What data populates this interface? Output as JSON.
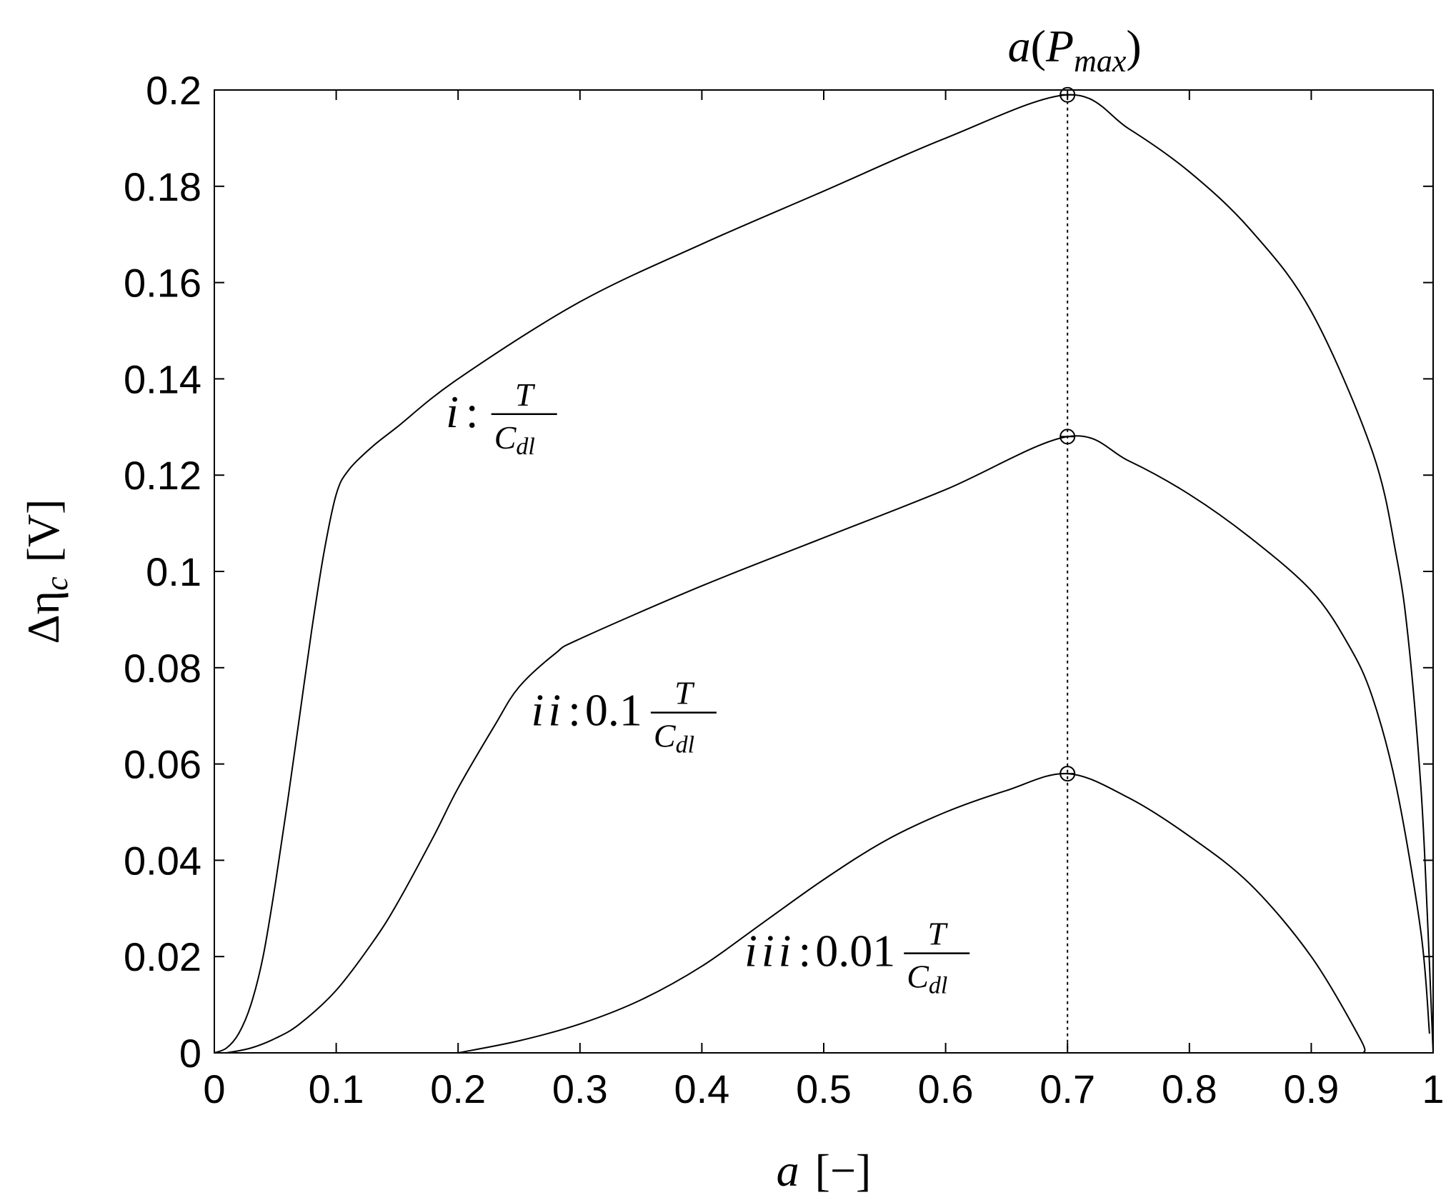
{
  "chart_data": {
    "type": "line",
    "xlabel": {
      "symbol": "a",
      "unit": "[−]"
    },
    "ylabel": {
      "symbol": "Δη",
      "subscript": "c",
      "unit": "[V]"
    },
    "xlim": [
      0,
      1
    ],
    "ylim": [
      0,
      0.2
    ],
    "xticks": [
      0,
      0.1,
      0.2,
      0.3,
      0.4,
      0.5,
      0.6,
      0.7,
      0.8,
      0.9,
      1
    ],
    "xtick_labels": [
      "0",
      "0.1",
      "0.2",
      "0.3",
      "0.4",
      "0.5",
      "0.6",
      "0.7",
      "0.8",
      "0.9",
      "1"
    ],
    "yticks": [
      0,
      0.02,
      0.04,
      0.06,
      0.08,
      0.1,
      0.12,
      0.14,
      0.16,
      0.18,
      0.2
    ],
    "ytick_labels": [
      "0",
      "0.02",
      "0.04",
      "0.06",
      "0.08",
      "0.1",
      "0.12",
      "0.14",
      "0.16",
      "0.18",
      "0.2"
    ],
    "grid": false,
    "legend": "none",
    "pmax_label": {
      "symbol": "a",
      "open": "(",
      "P": "P",
      "subscript": "max",
      "close": ")"
    },
    "pmax_x": 0.7,
    "series": [
      {
        "label_prefix": "i",
        "label_coef": "",
        "frac_num": "T",
        "frac_den_main": "C",
        "frac_den_sub": "dl",
        "label_pos": [
          0.19,
          0.13
        ],
        "points": [
          [
            0,
            0
          ],
          [
            0.01,
            0.001
          ],
          [
            0.02,
            0.004
          ],
          [
            0.03,
            0.01
          ],
          [
            0.04,
            0.02
          ],
          [
            0.05,
            0.035
          ],
          [
            0.06,
            0.052
          ],
          [
            0.07,
            0.07
          ],
          [
            0.08,
            0.088
          ],
          [
            0.09,
            0.104
          ],
          [
            0.1,
            0.116
          ],
          [
            0.11,
            0.121
          ],
          [
            0.13,
            0.126
          ],
          [
            0.15,
            0.13
          ],
          [
            0.2,
            0.14
          ],
          [
            0.3,
            0.156
          ],
          [
            0.4,
            0.168
          ],
          [
            0.5,
            0.179
          ],
          [
            0.6,
            0.19
          ],
          [
            0.7,
            0.199
          ],
          [
            0.75,
            0.192
          ],
          [
            0.8,
            0.183
          ],
          [
            0.85,
            0.171
          ],
          [
            0.9,
            0.154
          ],
          [
            0.95,
            0.125
          ],
          [
            0.97,
            0.103
          ],
          [
            0.98,
            0.085
          ],
          [
            0.99,
            0.055
          ],
          [
            0.995,
            0.03
          ],
          [
            1.0,
            0.0
          ]
        ],
        "peak": [
          0.7,
          0.199
        ]
      },
      {
        "label_prefix": "ii",
        "label_coef": "0.1",
        "frac_num": "T",
        "frac_den_main": "C",
        "frac_den_sub": "dl",
        "label_pos": [
          0.26,
          0.068
        ],
        "points": [
          [
            0.01,
            0
          ],
          [
            0.03,
            0.001
          ],
          [
            0.05,
            0.003
          ],
          [
            0.07,
            0.006
          ],
          [
            0.1,
            0.013
          ],
          [
            0.13,
            0.023
          ],
          [
            0.15,
            0.031
          ],
          [
            0.18,
            0.045
          ],
          [
            0.2,
            0.055
          ],
          [
            0.23,
            0.068
          ],
          [
            0.25,
            0.076
          ],
          [
            0.28,
            0.083
          ],
          [
            0.3,
            0.086
          ],
          [
            0.4,
            0.097
          ],
          [
            0.5,
            0.107
          ],
          [
            0.6,
            0.117
          ],
          [
            0.7,
            0.128
          ],
          [
            0.75,
            0.123
          ],
          [
            0.8,
            0.116
          ],
          [
            0.85,
            0.107
          ],
          [
            0.9,
            0.096
          ],
          [
            0.93,
            0.085
          ],
          [
            0.95,
            0.074
          ],
          [
            0.97,
            0.055
          ],
          [
            0.99,
            0.025
          ],
          [
            0.997,
            0.004
          ]
        ],
        "peak": [
          0.7,
          0.128
        ]
      },
      {
        "label_prefix": "iii",
        "label_coef": "0.01",
        "frac_num": "T",
        "frac_den_main": "C",
        "frac_den_sub": "dl",
        "label_pos": [
          0.435,
          0.018
        ],
        "points": [
          [
            0.2,
            0
          ],
          [
            0.25,
            0.0025
          ],
          [
            0.3,
            0.006
          ],
          [
            0.35,
            0.011
          ],
          [
            0.4,
            0.018
          ],
          [
            0.45,
            0.027
          ],
          [
            0.5,
            0.036
          ],
          [
            0.55,
            0.044
          ],
          [
            0.6,
            0.05
          ],
          [
            0.65,
            0.0545
          ],
          [
            0.7,
            0.058
          ],
          [
            0.75,
            0.053
          ],
          [
            0.8,
            0.045
          ],
          [
            0.85,
            0.035
          ],
          [
            0.9,
            0.02
          ],
          [
            0.94,
            0.003
          ],
          [
            0.943,
            0
          ]
        ],
        "peak": [
          0.7,
          0.058
        ]
      }
    ]
  }
}
